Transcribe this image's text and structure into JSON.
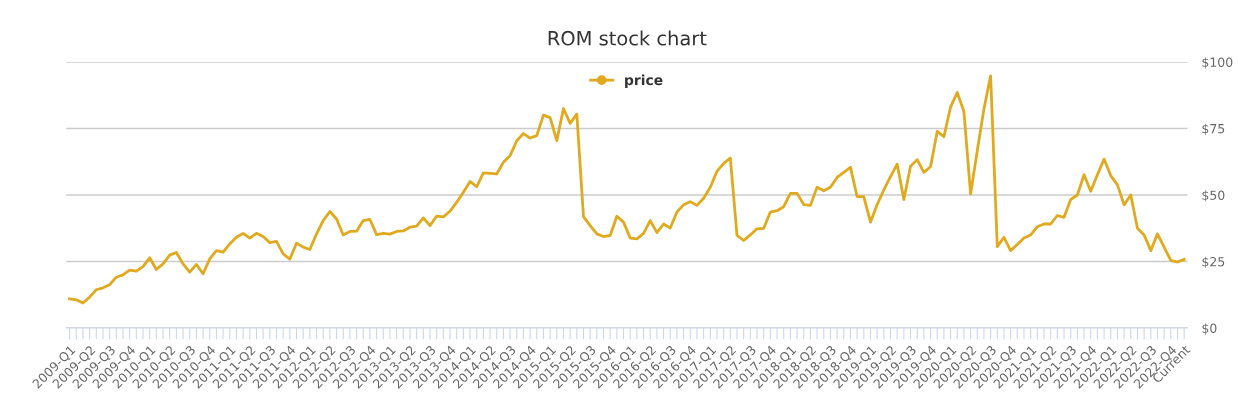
{
  "chart_data": {
    "type": "line",
    "title": "ROM stock chart",
    "categories": [
      "2009-Q1",
      null,
      null,
      "2009-Q2",
      null,
      null,
      "2009-Q3",
      null,
      null,
      "2009-Q4",
      null,
      null,
      "2010-Q1",
      null,
      null,
      "2010-Q2",
      null,
      null,
      "2010-Q3",
      null,
      null,
      "2010-Q4",
      null,
      null,
      "2011-Q1",
      null,
      null,
      "2011-Q2",
      null,
      null,
      "2011-Q3",
      null,
      null,
      "2011-Q4",
      null,
      null,
      "2012-Q1",
      null,
      null,
      "2012-Q2",
      null,
      null,
      "2012-Q3",
      null,
      null,
      "2012-Q4",
      null,
      null,
      "2013-Q1",
      null,
      null,
      "2013-Q2",
      null,
      null,
      "2013-Q3",
      null,
      null,
      "2013-Q4",
      null,
      null,
      "2014-Q1",
      null,
      null,
      "2014-Q2",
      null,
      null,
      "2014-Q3",
      null,
      null,
      "2014-Q4",
      null,
      null,
      "2015-Q1",
      null,
      null,
      "2015-Q2",
      null,
      null,
      "2015-Q3",
      null,
      null,
      "2015-Q4",
      null,
      null,
      "2016-Q1",
      null,
      null,
      "2016-Q2",
      null,
      null,
      "2016-Q3",
      null,
      null,
      "2016-Q4",
      null,
      null,
      "2017-Q1",
      null,
      null,
      "2017-Q2",
      null,
      null,
      "2017-Q3",
      null,
      null,
      "2017-Q4",
      null,
      null,
      "2018-Q1",
      null,
      null,
      "2018-Q2",
      null,
      null,
      "2018-Q3",
      null,
      null,
      "2018-Q4",
      null,
      null,
      "2019-Q1",
      null,
      null,
      "2019-Q2",
      null,
      null,
      "2019-Q3",
      null,
      null,
      "2019-Q4",
      null,
      null,
      "2020-Q1",
      null,
      null,
      "2020-Q2",
      null,
      null,
      "2020-Q3",
      null,
      null,
      "2020-Q4",
      null,
      null,
      "2021-Q1",
      null,
      null,
      "2021-Q2",
      null,
      null,
      "2021-Q3",
      null,
      null,
      "2021-Q4",
      null,
      null,
      "2022-Q1",
      null,
      null,
      "2022-Q2",
      null,
      null,
      "2022-Q3",
      null,
      null,
      "2022-Q4",
      null,
      "Current"
    ],
    "series": [
      {
        "name": "price",
        "color": "#e0a91e",
        "values": [
          11,
          10.6,
          9.4,
          11.6,
          14.4,
          15.1,
          16.3,
          19.1,
          20,
          21.8,
          21.4,
          23.1,
          26.4,
          22,
          24.1,
          27.4,
          28.4,
          24.1,
          21,
          23.9,
          20.4,
          26,
          29.1,
          28.5,
          31.6,
          34.1,
          35.6,
          33.8,
          35.6,
          34.4,
          32.1,
          32.6,
          27.9,
          25.9,
          31.9,
          30.4,
          29.5,
          35.4,
          40.4,
          43.8,
          41,
          35,
          36.3,
          36.4,
          40.4,
          40.8,
          35.1,
          35.6,
          35.3,
          36.3,
          36.5,
          37.9,
          38.3,
          41.4,
          38.5,
          42.1,
          41.8,
          43.9,
          47.3,
          51,
          55.1,
          53.1,
          58.3,
          58.1,
          57.9,
          62.3,
          64.8,
          70.4,
          73.1,
          71.4,
          72.3,
          80,
          79.1,
          70.4,
          82.5,
          76.9,
          80.4,
          41.9,
          38.5,
          35.4,
          34.4,
          34.8,
          42,
          39.8,
          33.8,
          33.5,
          35.6,
          40.4,
          35.9,
          39.1,
          37.6,
          43.6,
          46.3,
          47.5,
          46.1,
          48.8,
          52.9,
          58.9,
          61.9,
          63.9,
          34.8,
          32.9,
          35,
          37.3,
          37.5,
          43.6,
          44.1,
          45.6,
          50.6,
          50.6,
          46.4,
          46.1,
          52.9,
          51.6,
          52.9,
          56.6,
          58.5,
          60.4,
          49.4,
          49.4,
          39.8,
          46.4,
          51.9,
          56.9,
          61.6,
          48.3,
          60.8,
          63.3,
          58.5,
          60.6,
          73.9,
          71.9,
          83.1,
          88.5,
          81.4,
          50.4,
          66.6,
          82.3,
          94.8,
          30.6,
          34.1,
          29.1,
          31.4,
          33.8,
          35,
          38.1,
          39.1,
          39.1,
          42.3,
          41.6,
          48.3,
          50,
          57.6,
          51.4,
          57.6,
          63.5,
          57.3,
          53.8,
          46.3,
          50,
          37.5,
          35,
          29.1,
          35.4,
          30.4,
          25.4,
          24.8,
          25.8
        ]
      }
    ],
    "ylim": [
      0,
      100
    ],
    "yticks": [
      {
        "value": 0,
        "label": "$0"
      },
      {
        "value": 25,
        "label": "$25"
      },
      {
        "value": 50,
        "label": "$50"
      },
      {
        "value": 75,
        "label": "$75"
      },
      {
        "value": 100,
        "label": "$100"
      }
    ],
    "grid": "y",
    "legend": "top",
    "line_style": "solid"
  }
}
